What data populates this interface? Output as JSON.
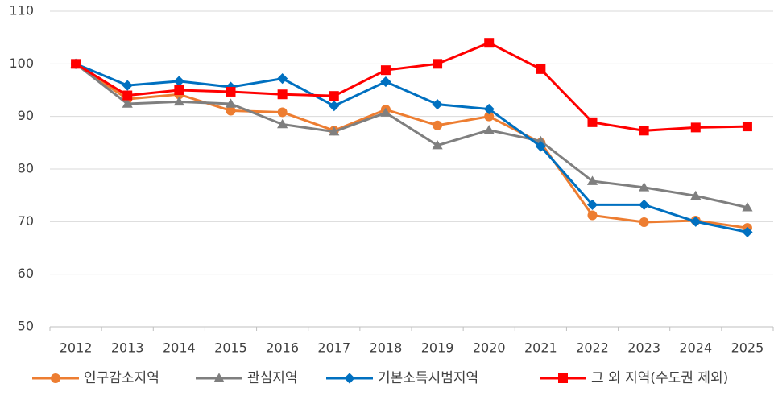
{
  "chart_data": {
    "type": "line",
    "categories": [
      "2012",
      "2013",
      "2014",
      "2015",
      "2016",
      "2017",
      "2018",
      "2019",
      "2020",
      "2021",
      "2022",
      "2023",
      "2024",
      "2025"
    ],
    "series": [
      {
        "name": "인구감소지역",
        "color": "#ED7D31",
        "marker": "circle",
        "values": [
          100,
          93.3,
          94.2,
          91.1,
          90.8,
          87.3,
          91.3,
          88.3,
          90,
          85,
          71.2,
          69.9,
          70.2,
          68.8
        ]
      },
      {
        "name": "관심지역",
        "color": "#7F7F7F",
        "marker": "triangle",
        "values": [
          100,
          92.4,
          92.8,
          92.4,
          88.5,
          87.1,
          90.7,
          84.5,
          87.4,
          85.3,
          77.7,
          76.5,
          74.9,
          72.7
        ]
      },
      {
        "name": "기본소득시범지역",
        "color": "#0070C0",
        "marker": "diamond",
        "values": [
          100,
          95.9,
          96.7,
          95.6,
          97.2,
          92,
          96.6,
          92.3,
          91.4,
          84.3,
          73.2,
          73.2,
          70,
          68
        ]
      },
      {
        "name": "그 외 지역(수도권 제외)",
        "color": "#FF0000",
        "marker": "square",
        "values": [
          100,
          94,
          95,
          94.7,
          94.2,
          93.9,
          98.8,
          100,
          104,
          99,
          88.9,
          87.3,
          87.9,
          88.1
        ]
      }
    ],
    "ylim": [
      50,
      110
    ],
    "yticks": [
      50,
      60,
      70,
      80,
      90,
      100,
      110
    ],
    "grid": true,
    "legend": "bottom"
  }
}
